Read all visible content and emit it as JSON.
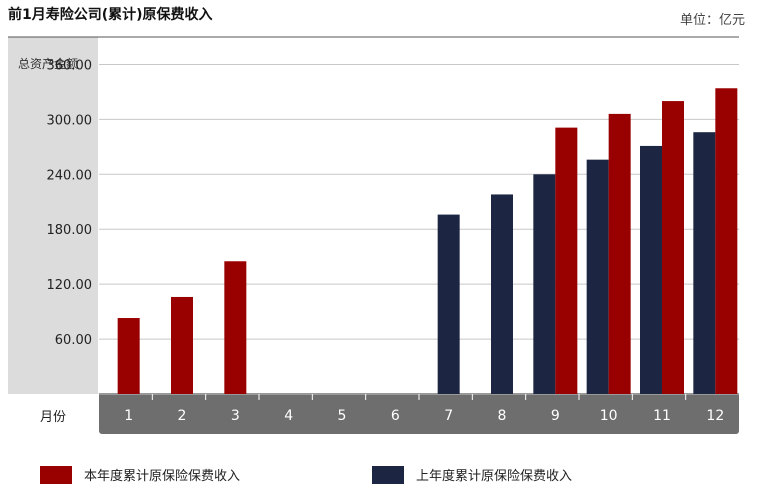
{
  "chart_data": {
    "type": "bar",
    "title": "前1月寿险公司(累计)原保费收入",
    "unit_label": "单位：亿元",
    "ylabel": "总资产金额",
    "xlabel": "月份",
    "categories": [
      "1",
      "2",
      "3",
      "4",
      "5",
      "6",
      "7",
      "8",
      "9",
      "10",
      "11",
      "12"
    ],
    "series": [
      {
        "name": "上年度累计原保险保费收入",
        "color": "#1c2541",
        "values": [
          null,
          null,
          null,
          null,
          null,
          null,
          196,
          218,
          240,
          256,
          271,
          286
        ]
      },
      {
        "name": "本年度累计原保险保费收入",
        "color": "#990000",
        "values": [
          83,
          106,
          145,
          null,
          null,
          null,
          null,
          null,
          291,
          306,
          320,
          334
        ]
      }
    ],
    "ylim": [
      0,
      390
    ],
    "yticks": [
      60,
      120,
      180,
      240,
      300,
      360
    ],
    "ytick_labels": [
      "60.00",
      "120.00",
      "180.00",
      "240.00",
      "300.00",
      "360.00"
    ],
    "grid": true,
    "legend_position": "bottom"
  }
}
